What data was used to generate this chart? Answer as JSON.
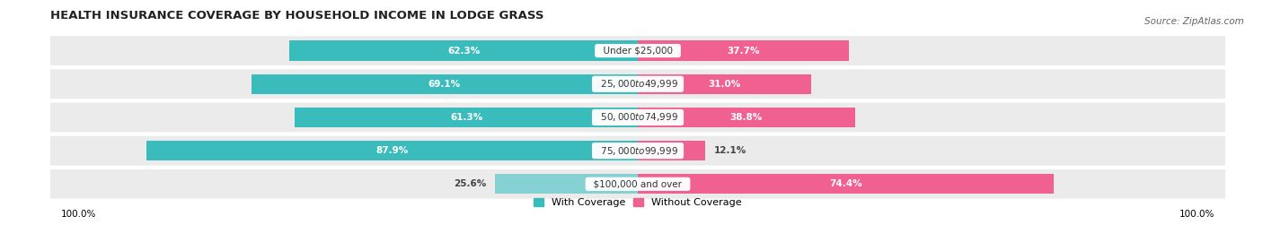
{
  "title": "HEALTH INSURANCE COVERAGE BY HOUSEHOLD INCOME IN LODGE GRASS",
  "source": "Source: ZipAtlas.com",
  "categories": [
    "Under $25,000",
    "$25,000 to $49,999",
    "$50,000 to $74,999",
    "$75,000 to $99,999",
    "$100,000 and over"
  ],
  "with_coverage": [
    62.3,
    69.1,
    61.3,
    87.9,
    25.6
  ],
  "without_coverage": [
    37.7,
    31.0,
    38.8,
    12.1,
    74.4
  ],
  "color_with": [
    "#3BBCBC",
    "#3BBCBC",
    "#3BBCBC",
    "#3BBCBC",
    "#85D0D0"
  ],
  "color_without": [
    "#F06090",
    "#F06090",
    "#F06090",
    "#F06090",
    "#F06090"
  ],
  "row_bg": "#EBEBEB",
  "title_fontsize": 9.5,
  "source_fontsize": 7.5,
  "label_fontsize": 7.5,
  "category_fontsize": 7.5,
  "legend_fontsize": 8,
  "xlim": 105,
  "bar_height": 0.6
}
